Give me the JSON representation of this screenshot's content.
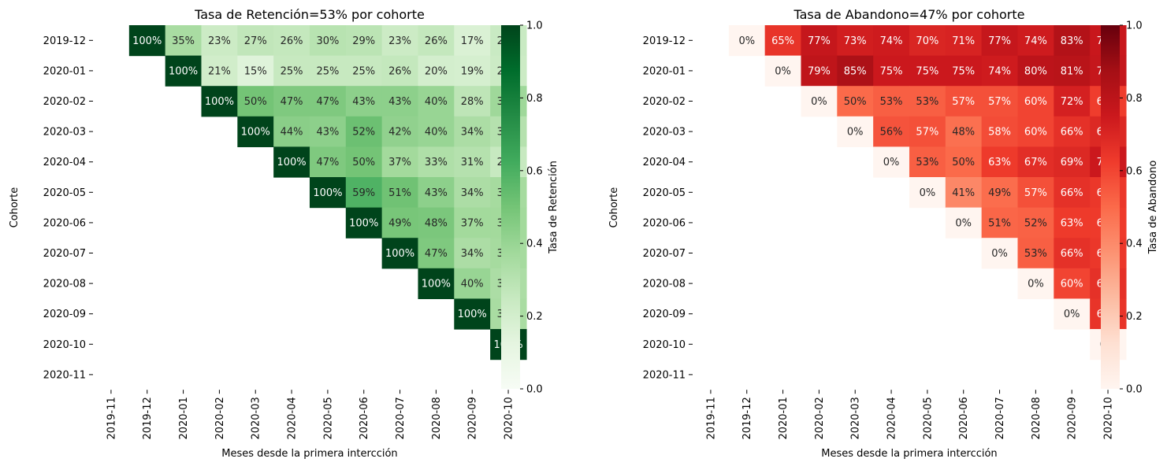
{
  "chart_data": [
    {
      "type": "heatmap",
      "title": "Tasa de Retención=53% por cohorte",
      "xlabel": "Meses desde la primera intercción",
      "ylabel": "Cohorte",
      "colorbar_label": "Tasa de Retención",
      "colormap": "Greens",
      "colorbar_range": [
        0.0,
        1.0
      ],
      "colorbar_ticks": [
        "0.0",
        "0.2",
        "0.4",
        "0.6",
        "0.8",
        "1.0"
      ],
      "x_categories": [
        "2019-11",
        "2019-12",
        "2020-01",
        "2020-02",
        "2020-03",
        "2020-04",
        "2020-05",
        "2020-06",
        "2020-07",
        "2020-08",
        "2020-09",
        "2020-10"
      ],
      "y_categories": [
        "2019-12",
        "2020-01",
        "2020-02",
        "2020-03",
        "2020-04",
        "2020-05",
        "2020-06",
        "2020-07",
        "2020-08",
        "2020-09",
        "2020-10",
        "2020-11"
      ],
      "values": [
        [
          null,
          1.0,
          0.35,
          0.23,
          0.27,
          0.26,
          0.3,
          0.29,
          0.23,
          0.26,
          0.17,
          0.24
        ],
        [
          null,
          null,
          1.0,
          0.21,
          0.15,
          0.25,
          0.25,
          0.25,
          0.26,
          0.2,
          0.19,
          0.23
        ],
        [
          null,
          null,
          null,
          1.0,
          0.5,
          0.47,
          0.47,
          0.43,
          0.43,
          0.4,
          0.28,
          0.38
        ],
        [
          null,
          null,
          null,
          null,
          1.0,
          0.44,
          0.43,
          0.52,
          0.42,
          0.4,
          0.34,
          0.31
        ],
        [
          null,
          null,
          null,
          null,
          null,
          1.0,
          0.47,
          0.5,
          0.37,
          0.33,
          0.31,
          0.25
        ],
        [
          null,
          null,
          null,
          null,
          null,
          null,
          1.0,
          0.59,
          0.51,
          0.43,
          0.34,
          0.36
        ],
        [
          null,
          null,
          null,
          null,
          null,
          null,
          null,
          1.0,
          0.49,
          0.48,
          0.37,
          0.37
        ],
        [
          null,
          null,
          null,
          null,
          null,
          null,
          null,
          null,
          1.0,
          0.47,
          0.34,
          0.36
        ],
        [
          null,
          null,
          null,
          null,
          null,
          null,
          null,
          null,
          null,
          1.0,
          0.4,
          0.34
        ],
        [
          null,
          null,
          null,
          null,
          null,
          null,
          null,
          null,
          null,
          null,
          1.0,
          0.35
        ],
        [
          null,
          null,
          null,
          null,
          null,
          null,
          null,
          null,
          null,
          null,
          null,
          1.0
        ],
        [
          null,
          null,
          null,
          null,
          null,
          null,
          null,
          null,
          null,
          null,
          null,
          null
        ]
      ],
      "grid": false,
      "legend": "colorbar-right"
    },
    {
      "type": "heatmap",
      "title": "Tasa de Abandono=47% por cohorte",
      "xlabel": "Meses desde la primera intercción",
      "ylabel": "Cohorte",
      "colorbar_label": "Tasa de Abandono",
      "colormap": "Reds",
      "colorbar_range": [
        0.0,
        1.0
      ],
      "colorbar_ticks": [
        "0.0",
        "0.2",
        "0.4",
        "0.6",
        "0.8",
        "1.0"
      ],
      "x_categories": [
        "2019-11",
        "2019-12",
        "2020-01",
        "2020-02",
        "2020-03",
        "2020-04",
        "2020-05",
        "2020-06",
        "2020-07",
        "2020-08",
        "2020-09",
        "2020-10"
      ],
      "y_categories": [
        "2019-12",
        "2020-01",
        "2020-02",
        "2020-03",
        "2020-04",
        "2020-05",
        "2020-06",
        "2020-07",
        "2020-08",
        "2020-09",
        "2020-10",
        "2020-11"
      ],
      "values": [
        [
          null,
          0.0,
          0.65,
          0.77,
          0.73,
          0.74,
          0.7,
          0.71,
          0.77,
          0.74,
          0.83,
          0.76
        ],
        [
          null,
          null,
          0.0,
          0.79,
          0.85,
          0.75,
          0.75,
          0.75,
          0.74,
          0.8,
          0.81,
          0.77
        ],
        [
          null,
          null,
          null,
          0.0,
          0.5,
          0.53,
          0.53,
          0.57,
          0.57,
          0.6,
          0.72,
          0.62
        ],
        [
          null,
          null,
          null,
          null,
          0.0,
          0.56,
          0.57,
          0.48,
          0.58,
          0.6,
          0.66,
          0.69
        ],
        [
          null,
          null,
          null,
          null,
          null,
          0.0,
          0.53,
          0.5,
          0.63,
          0.67,
          0.69,
          0.75
        ],
        [
          null,
          null,
          null,
          null,
          null,
          null,
          0.0,
          0.41,
          0.49,
          0.57,
          0.66,
          0.64
        ],
        [
          null,
          null,
          null,
          null,
          null,
          null,
          null,
          0.0,
          0.51,
          0.52,
          0.63,
          0.63
        ],
        [
          null,
          null,
          null,
          null,
          null,
          null,
          null,
          null,
          0.0,
          0.53,
          0.66,
          0.64
        ],
        [
          null,
          null,
          null,
          null,
          null,
          null,
          null,
          null,
          null,
          0.0,
          0.6,
          0.66
        ],
        [
          null,
          null,
          null,
          null,
          null,
          null,
          null,
          null,
          null,
          null,
          0.0,
          0.65
        ],
        [
          null,
          null,
          null,
          null,
          null,
          null,
          null,
          null,
          null,
          null,
          null,
          0.0
        ],
        [
          null,
          null,
          null,
          null,
          null,
          null,
          null,
          null,
          null,
          null,
          null,
          null
        ]
      ],
      "grid": false,
      "legend": "colorbar-right"
    }
  ]
}
